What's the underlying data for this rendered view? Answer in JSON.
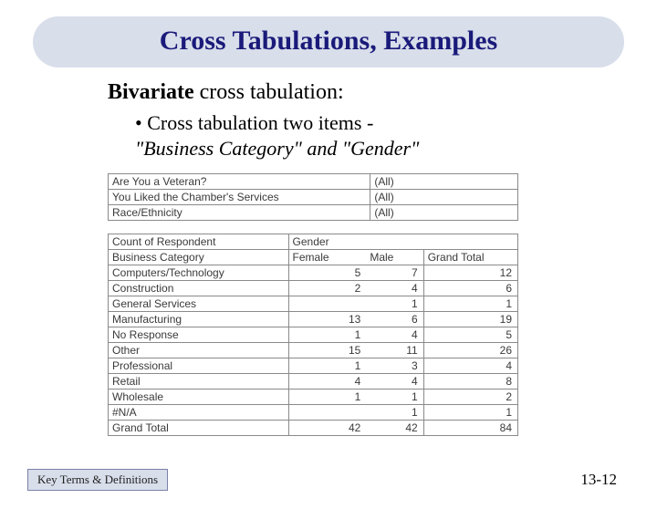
{
  "slide": {
    "title": "Cross Tabulations, Examples",
    "subtitle_bold": "Bivariate",
    "subtitle_rest": " cross tabulation:",
    "bullet_line1": "• Cross tabulation two items -",
    "bullet_line2": "\"Business Category\" and \"Gender\""
  },
  "filterTable": {
    "rows": [
      {
        "label": "Are You a Veteran?",
        "value": "(All)"
      },
      {
        "label": "You Liked the Chamber's Services",
        "value": "(All)"
      },
      {
        "label": "Race/Ethnicity",
        "value": "(All)"
      }
    ]
  },
  "pivot": {
    "countLabel": "Count of Respondent",
    "colGroupLabel": "Gender",
    "rowGroupLabel": "Business Category",
    "col1": "Female",
    "col2": "Male",
    "totalLabel": "Grand Total",
    "rows": [
      {
        "label": "Computers/Technology",
        "f": "5",
        "m": "7",
        "t": "12"
      },
      {
        "label": "Construction",
        "f": "2",
        "m": "4",
        "t": "6"
      },
      {
        "label": "General Services",
        "f": "",
        "m": "1",
        "t": "1"
      },
      {
        "label": "Manufacturing",
        "f": "13",
        "m": "6",
        "t": "19"
      },
      {
        "label": "No Response",
        "f": "1",
        "m": "4",
        "t": "5"
      },
      {
        "label": "Other",
        "f": "15",
        "m": "11",
        "t": "26"
      },
      {
        "label": "Professional",
        "f": "1",
        "m": "3",
        "t": "4"
      },
      {
        "label": "Retail",
        "f": "4",
        "m": "4",
        "t": "8"
      },
      {
        "label": "Wholesale",
        "f": "1",
        "m": "1",
        "t": "2"
      },
      {
        "label": "#N/A",
        "f": "",
        "m": "1",
        "t": "1"
      }
    ],
    "grandTotal": {
      "label": "Grand Total",
      "f": "42",
      "m": "42",
      "t": "84"
    }
  },
  "footer": {
    "button": "Key Terms & Definitions",
    "page": "13-12"
  },
  "colors": {
    "banner_bg": "#d8deea",
    "banner_text": "#1a1a7a",
    "table_border": "#8a8a8a",
    "table_text": "#3a3a3a"
  }
}
